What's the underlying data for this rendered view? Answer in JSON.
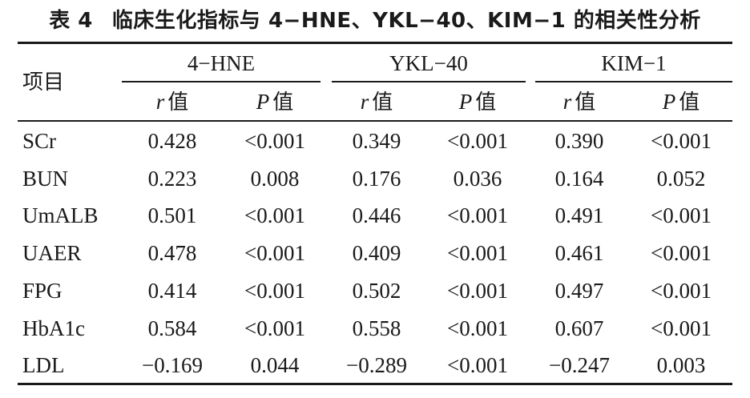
{
  "table": {
    "number": "表 4",
    "title": "临床生化指标与 4−HNE、YKL−40、KIM−1 的相关性分析",
    "row_header": "项目",
    "groups": [
      "4−HNE",
      "YKL−40",
      "KIM−1"
    ],
    "subheaders": [
      {
        "symbol": "r",
        "suffix": "值"
      },
      {
        "symbol": "P",
        "suffix": "值"
      }
    ],
    "rows": [
      {
        "label": "SCr",
        "values": [
          "0.428",
          "<0.001",
          "0.349",
          "<0.001",
          "0.390",
          "<0.001"
        ]
      },
      {
        "label": "BUN",
        "values": [
          "0.223",
          "0.008",
          "0.176",
          "0.036",
          "0.164",
          "0.052"
        ]
      },
      {
        "label": "UmALB",
        "values": [
          "0.501",
          "<0.001",
          "0.446",
          "<0.001",
          "0.491",
          "<0.001"
        ]
      },
      {
        "label": "UAER",
        "values": [
          "0.478",
          "<0.001",
          "0.409",
          "<0.001",
          "0.461",
          "<0.001"
        ]
      },
      {
        "label": "FPG",
        "values": [
          "0.414",
          "<0.001",
          "0.502",
          "<0.001",
          "0.497",
          "<0.001"
        ]
      },
      {
        "label": "HbA1c",
        "values": [
          "0.584",
          "<0.001",
          "0.558",
          "<0.001",
          "0.607",
          "<0.001"
        ]
      },
      {
        "label": "LDL",
        "values": [
          "−0.169",
          "0.044",
          "−0.289",
          "<0.001",
          "−0.247",
          "0.003"
        ]
      }
    ]
  }
}
